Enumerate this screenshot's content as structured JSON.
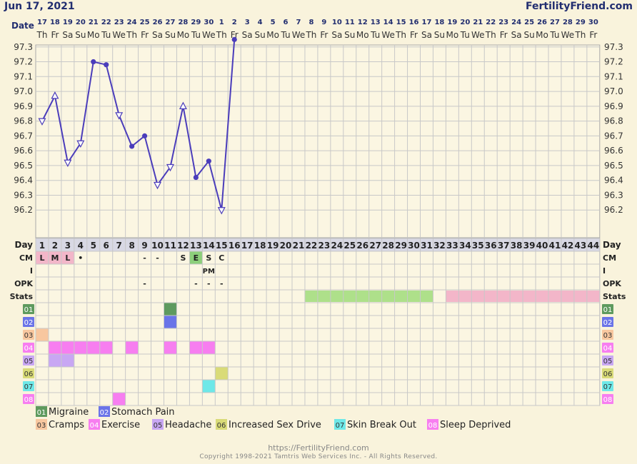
{
  "header": {
    "date": "Jun 17, 2021",
    "brand": "FertilityFriend.com"
  },
  "footer": {
    "url": "https://FertilityFriend.com",
    "copyright": "Copyright 1998-2021 Tamtris Web Services Inc. - All Rights Reserved."
  },
  "row_labels": {
    "date": "Date",
    "day": "Day",
    "cm": "CM",
    "i": "I",
    "opk": "OPK",
    "stats": "Stats"
  },
  "colors": {
    "background": "#f9f3dc",
    "line": "#4b3dbb",
    "grid": "#c8c8c8",
    "header_text": "#222e70",
    "day_row_bg": "#d8d8e4",
    "fertile_window": "#aee08a",
    "luteal_phase": "#f3b6c9",
    "menses_bg": "#f3b6c9",
    "egg_white_bg": "#8ccf7a"
  },
  "chart_data": {
    "type": "line",
    "xlabel": "Day",
    "ylabel": "",
    "ylim": [
      96.1,
      97.4
    ],
    "yticks": [
      "97.3",
      "97.2",
      "97.1",
      "97.0",
      "96.9",
      "96.8",
      "96.7",
      "96.6",
      "96.5",
      "96.4",
      "96.3",
      "96.2"
    ],
    "dates": [
      "17",
      "18",
      "19",
      "20",
      "21",
      "22",
      "23",
      "24",
      "25",
      "26",
      "27",
      "28",
      "29",
      "30",
      "1",
      "2",
      "3",
      "4",
      "5",
      "6",
      "7",
      "8",
      "9",
      "10",
      "11",
      "12",
      "13",
      "14",
      "15",
      "16",
      "17",
      "18",
      "19",
      "20",
      "21",
      "22",
      "23",
      "24",
      "25",
      "26",
      "27",
      "28",
      "29",
      "30"
    ],
    "weekdays": [
      "Th",
      "Fr",
      "Sa",
      "Su",
      "Mo",
      "Tu",
      "We",
      "Th",
      "Fr",
      "Sa",
      "Su",
      "Mo",
      "Tu",
      "We",
      "Th",
      "Fr",
      "Sa",
      "Su",
      "Mo",
      "Tu",
      "We",
      "Th",
      "Fr",
      "Sa",
      "Su",
      "Mo",
      "Tu",
      "We",
      "Th",
      "Fr",
      "Sa",
      "Su",
      "Mo",
      "Tu",
      "We",
      "Th",
      "Fr",
      "Sa",
      "Su",
      "Mo",
      "Tu",
      "We",
      "Th",
      "Fr"
    ],
    "cycle_days": [
      1,
      2,
      3,
      4,
      5,
      6,
      7,
      8,
      9,
      10,
      11,
      12,
      13,
      14,
      15,
      16,
      17,
      18,
      19,
      20,
      21,
      22,
      23,
      24,
      25,
      26,
      27,
      28,
      29,
      30,
      31,
      32,
      33,
      34,
      35,
      36,
      37,
      38,
      39,
      40,
      41,
      42,
      43,
      44
    ],
    "temperatures": [
      {
        "day": 1,
        "value": 96.8,
        "marker": "triangle-down-open"
      },
      {
        "day": 2,
        "value": 96.97,
        "marker": "triangle-up-open"
      },
      {
        "day": 3,
        "value": 96.52,
        "marker": "triangle-down-open"
      },
      {
        "day": 4,
        "value": 96.65,
        "marker": "triangle-down-open"
      },
      {
        "day": 5,
        "value": 97.2,
        "marker": "dot"
      },
      {
        "day": 6,
        "value": 97.18,
        "marker": "dot"
      },
      {
        "day": 7,
        "value": 96.84,
        "marker": "triangle-down-open"
      },
      {
        "day": 8,
        "value": 96.63,
        "marker": "dot"
      },
      {
        "day": 9,
        "value": 96.7,
        "marker": "dot"
      },
      {
        "day": 10,
        "value": 96.37,
        "marker": "triangle-down-open"
      },
      {
        "day": 11,
        "value": 96.49,
        "marker": "triangle-down-open"
      },
      {
        "day": 12,
        "value": 96.9,
        "marker": "triangle-up-open"
      },
      {
        "day": 13,
        "value": 96.42,
        "marker": "dot"
      },
      {
        "day": 14,
        "value": 96.53,
        "marker": "dot"
      },
      {
        "day": 15,
        "value": 96.2,
        "marker": "triangle-down-open"
      },
      {
        "day": 16,
        "value": 97.35,
        "marker": "dot"
      }
    ],
    "cm": [
      {
        "day": 1,
        "text": "L",
        "bg": "#f3b6c9"
      },
      {
        "day": 2,
        "text": "M",
        "bg": "#f3b6c9"
      },
      {
        "day": 3,
        "text": "L",
        "bg": "#f3b6c9"
      },
      {
        "day": 4,
        "text": "•",
        "bg": ""
      },
      {
        "day": 9,
        "text": "-",
        "bg": ""
      },
      {
        "day": 10,
        "text": "-",
        "bg": ""
      },
      {
        "day": 12,
        "text": "S",
        "bg": ""
      },
      {
        "day": 13,
        "text": "E",
        "bg": "#8ccf7a"
      },
      {
        "day": 14,
        "text": "S",
        "bg": ""
      },
      {
        "day": 15,
        "text": "C",
        "bg": ""
      }
    ],
    "intercourse": [
      {
        "day": 14,
        "text": "PM"
      }
    ],
    "opk": [
      {
        "day": 9,
        "text": "-"
      },
      {
        "day": 13,
        "text": "-"
      },
      {
        "day": 14,
        "text": "-"
      },
      {
        "day": 15,
        "text": "-"
      }
    ],
    "stats": [
      {
        "start": 22,
        "end": 31,
        "color": "#aee08a"
      },
      {
        "start": 33,
        "end": 44,
        "color": "#f3b6c9"
      }
    ],
    "symptoms": [
      {
        "code": "01",
        "name": "Migraine",
        "color": "#5e9a5e",
        "days": [
          11
        ]
      },
      {
        "code": "02",
        "name": "Stomach Pain",
        "color": "#6a74e8",
        "days": [
          11
        ]
      },
      {
        "code": "03",
        "name": "Cramps",
        "color": "#f8c79f",
        "days": [
          1
        ]
      },
      {
        "code": "04",
        "name": "Exercise",
        "color": "#f77ef0",
        "days": [
          2,
          3,
          4,
          5,
          6,
          8,
          11,
          13,
          14
        ]
      },
      {
        "code": "05",
        "name": "Headache",
        "color": "#c8a7f3",
        "days": [
          2,
          3
        ]
      },
      {
        "code": "06",
        "name": "Increased Sex Drive",
        "color": "#d9db78",
        "days": [
          15
        ]
      },
      {
        "code": "07",
        "name": "Skin Break Out",
        "color": "#6ee8e8",
        "days": [
          14
        ]
      },
      {
        "code": "08",
        "name": "Sleep Deprived",
        "color": "#f77ef0",
        "days": [
          7
        ]
      }
    ]
  }
}
